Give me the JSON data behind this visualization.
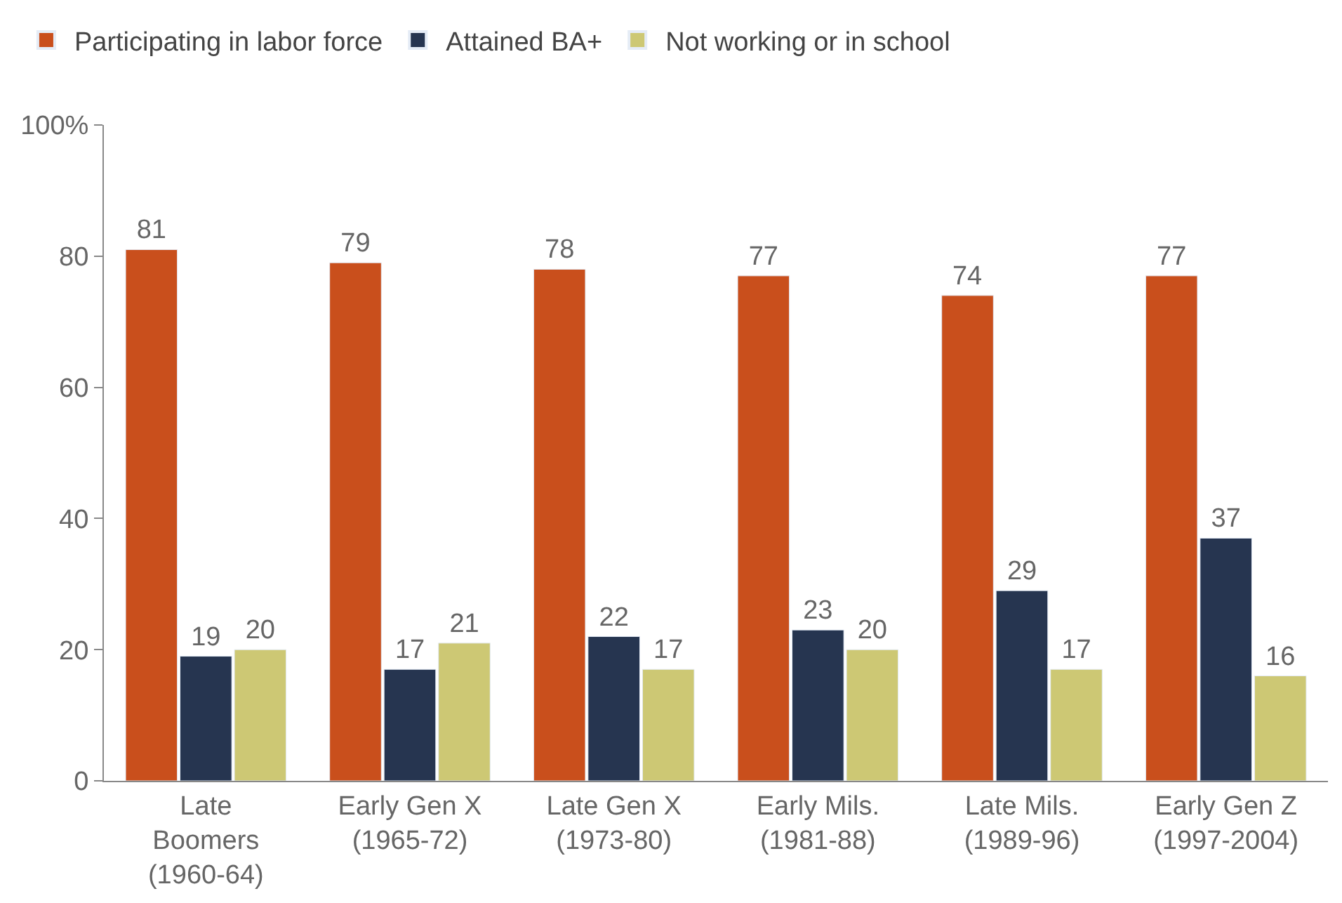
{
  "chart_data": {
    "type": "bar",
    "categories": [
      "Late\nBoomers\n(1960-64)",
      "Early Gen X\n(1965-72)",
      "Late Gen X\n(1973-80)",
      "Early Mils.\n(1981-88)",
      "Late Mils.\n(1989-96)",
      "Early Gen Z\n(1997-2004)"
    ],
    "series": [
      {
        "name": "Participating in labor force",
        "color": "#c94f1c",
        "values": [
          81,
          79,
          78,
          77,
          74,
          77
        ]
      },
      {
        "name": "Attained BA+",
        "color": "#263550",
        "values": [
          19,
          17,
          22,
          23,
          29,
          37
        ]
      },
      {
        "name": "Not working or in school",
        "color": "#cdc874",
        "values": [
          20,
          21,
          17,
          20,
          17,
          16
        ]
      }
    ],
    "ylim": [
      0,
      100
    ],
    "yticks": [
      0,
      20,
      40,
      60,
      80,
      {
        "value": 100,
        "label": "100%"
      }
    ],
    "data_labels": true,
    "legend": "top left"
  }
}
